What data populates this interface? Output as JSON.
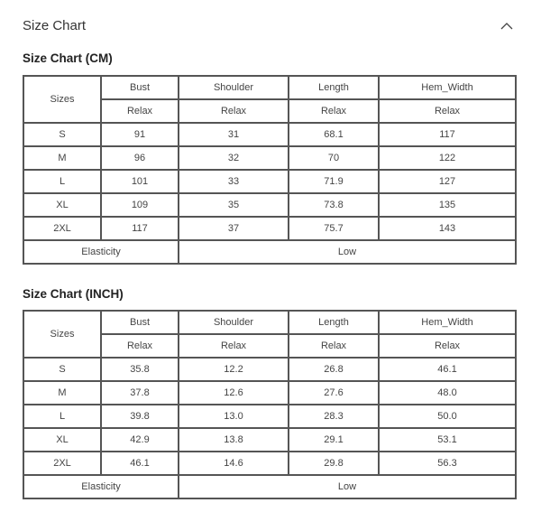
{
  "header": {
    "title": "Size Chart",
    "collapse_icon": "chevron-up-icon"
  },
  "tables": [
    {
      "title": "Size Chart (CM)",
      "sizes_label": "Sizes",
      "columns": [
        "Bust",
        "Shoulder",
        "Length",
        "Hem_Width"
      ],
      "fit": [
        "Relax",
        "Relax",
        "Relax",
        "Relax"
      ],
      "rows": [
        {
          "size": "S",
          "values": [
            "91",
            "31",
            "68.1",
            "117"
          ]
        },
        {
          "size": "M",
          "values": [
            "96",
            "32",
            "70",
            "122"
          ]
        },
        {
          "size": "L",
          "values": [
            "101",
            "33",
            "71.9",
            "127"
          ]
        },
        {
          "size": "XL",
          "values": [
            "109",
            "35",
            "73.8",
            "135"
          ]
        },
        {
          "size": "2XL",
          "values": [
            "117",
            "37",
            "75.7",
            "143"
          ]
        }
      ],
      "elasticity_label": "Elasticity",
      "elasticity_value": "Low"
    },
    {
      "title": "Size Chart (INCH)",
      "sizes_label": "Sizes",
      "columns": [
        "Bust",
        "Shoulder",
        "Length",
        "Hem_Width"
      ],
      "fit": [
        "Relax",
        "Relax",
        "Relax",
        "Relax"
      ],
      "rows": [
        {
          "size": "S",
          "values": [
            "35.8",
            "12.2",
            "26.8",
            "46.1"
          ]
        },
        {
          "size": "M",
          "values": [
            "37.8",
            "12.6",
            "27.6",
            "48.0"
          ]
        },
        {
          "size": "L",
          "values": [
            "39.8",
            "13.0",
            "28.3",
            "50.0"
          ]
        },
        {
          "size": "XL",
          "values": [
            "42.9",
            "13.8",
            "29.1",
            "53.1"
          ]
        },
        {
          "size": "2XL",
          "values": [
            "46.1",
            "14.6",
            "29.8",
            "56.3"
          ]
        }
      ],
      "elasticity_label": "Elasticity",
      "elasticity_value": "Low"
    }
  ]
}
